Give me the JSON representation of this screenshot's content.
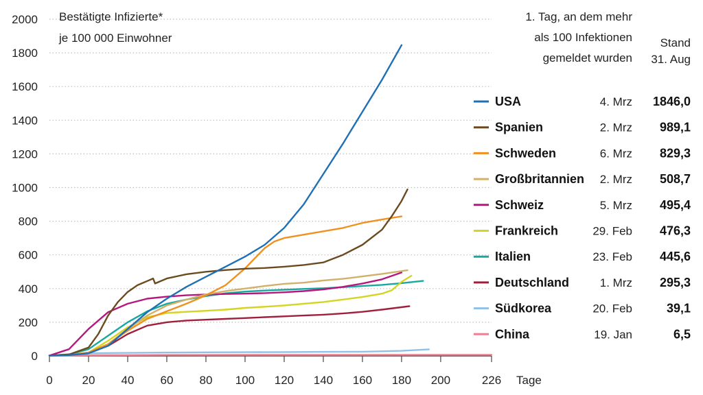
{
  "chart_data": {
    "type": "line",
    "ylabel_lines": [
      "Bestätigte Infizierte*",
      "je 100 000 Einwohner"
    ],
    "xlabel": "Tage",
    "xlim": [
      0,
      226
    ],
    "ylim": [
      0,
      2000
    ],
    "x_ticks": [
      0,
      20,
      40,
      60,
      80,
      100,
      120,
      140,
      160,
      180,
      200,
      226
    ],
    "y_ticks": [
      0,
      200,
      400,
      600,
      800,
      1000,
      1200,
      1400,
      1600,
      1800,
      2000
    ],
    "grid": "horizontal-dotted",
    "legend_header": {
      "date_lines": [
        "1. Tag, an dem mehr",
        "als 100 Infektionen",
        "gemeldet wurden"
      ],
      "value_lines": [
        "Stand",
        "31. Aug"
      ]
    },
    "series": [
      {
        "name": "USA",
        "color": "#1f6fb5",
        "date": "4. Mrz",
        "value": "1846,0",
        "points": [
          [
            0,
            2
          ],
          [
            10,
            5
          ],
          [
            20,
            15
          ],
          [
            30,
            60
          ],
          [
            40,
            160
          ],
          [
            50,
            260
          ],
          [
            60,
            340
          ],
          [
            70,
            410
          ],
          [
            80,
            470
          ],
          [
            90,
            530
          ],
          [
            100,
            590
          ],
          [
            110,
            660
          ],
          [
            120,
            760
          ],
          [
            130,
            900
          ],
          [
            140,
            1080
          ],
          [
            150,
            1260
          ],
          [
            160,
            1450
          ],
          [
            170,
            1640
          ],
          [
            180,
            1846
          ]
        ]
      },
      {
        "name": "Spanien",
        "color": "#6b4a1f",
        "date": "2. Mrz",
        "value": "989,1",
        "points": [
          [
            0,
            2
          ],
          [
            10,
            8
          ],
          [
            20,
            50
          ],
          [
            25,
            130
          ],
          [
            30,
            240
          ],
          [
            35,
            320
          ],
          [
            40,
            380
          ],
          [
            45,
            420
          ],
          [
            50,
            445
          ],
          [
            53,
            460
          ],
          [
            54,
            430
          ],
          [
            60,
            460
          ],
          [
            70,
            485
          ],
          [
            80,
            500
          ],
          [
            90,
            510
          ],
          [
            100,
            518
          ],
          [
            110,
            522
          ],
          [
            120,
            530
          ],
          [
            130,
            540
          ],
          [
            140,
            555
          ],
          [
            150,
            600
          ],
          [
            160,
            660
          ],
          [
            170,
            750
          ],
          [
            175,
            830
          ],
          [
            180,
            920
          ],
          [
            183,
            989
          ]
        ]
      },
      {
        "name": "Schweden",
        "color": "#f0901e",
        "date": "6. Mrz",
        "value": "829,3",
        "points": [
          [
            0,
            2
          ],
          [
            10,
            5
          ],
          [
            20,
            20
          ],
          [
            30,
            70
          ],
          [
            40,
            150
          ],
          [
            50,
            220
          ],
          [
            60,
            265
          ],
          [
            70,
            310
          ],
          [
            80,
            360
          ],
          [
            90,
            420
          ],
          [
            100,
            520
          ],
          [
            105,
            580
          ],
          [
            110,
            640
          ],
          [
            115,
            680
          ],
          [
            120,
            700
          ],
          [
            130,
            720
          ],
          [
            140,
            740
          ],
          [
            150,
            760
          ],
          [
            160,
            790
          ],
          [
            170,
            810
          ],
          [
            180,
            829
          ]
        ]
      },
      {
        "name": "Großbritannien",
        "color": "#d2b06a",
        "date": "2. Mrz",
        "value": "508,7",
        "points": [
          [
            0,
            2
          ],
          [
            10,
            5
          ],
          [
            20,
            20
          ],
          [
            30,
            70
          ],
          [
            40,
            160
          ],
          [
            50,
            240
          ],
          [
            60,
            300
          ],
          [
            70,
            335
          ],
          [
            80,
            365
          ],
          [
            90,
            385
          ],
          [
            100,
            400
          ],
          [
            110,
            415
          ],
          [
            120,
            428
          ],
          [
            130,
            435
          ],
          [
            140,
            448
          ],
          [
            150,
            458
          ],
          [
            160,
            472
          ],
          [
            170,
            487
          ],
          [
            183,
            508.7
          ]
        ]
      },
      {
        "name": "Schweiz",
        "color": "#b5177f",
        "date": "5. Mrz",
        "value": "495,4",
        "points": [
          [
            0,
            2
          ],
          [
            10,
            40
          ],
          [
            20,
            160
          ],
          [
            30,
            260
          ],
          [
            40,
            310
          ],
          [
            50,
            340
          ],
          [
            60,
            352
          ],
          [
            70,
            360
          ],
          [
            80,
            365
          ],
          [
            90,
            368
          ],
          [
            100,
            370
          ],
          [
            110,
            373
          ],
          [
            120,
            378
          ],
          [
            130,
            385
          ],
          [
            140,
            395
          ],
          [
            150,
            410
          ],
          [
            160,
            430
          ],
          [
            170,
            455
          ],
          [
            180,
            495.4
          ]
        ]
      },
      {
        "name": "Frankreich",
        "color": "#d4d421",
        "date": "29. Feb",
        "value": "476,3",
        "points": [
          [
            0,
            2
          ],
          [
            10,
            5
          ],
          [
            20,
            20
          ],
          [
            30,
            90
          ],
          [
            40,
            170
          ],
          [
            50,
            230
          ],
          [
            60,
            255
          ],
          [
            70,
            262
          ],
          [
            80,
            268
          ],
          [
            90,
            275
          ],
          [
            100,
            285
          ],
          [
            110,
            292
          ],
          [
            120,
            300
          ],
          [
            130,
            310
          ],
          [
            140,
            320
          ],
          [
            150,
            335
          ],
          [
            160,
            350
          ],
          [
            170,
            370
          ],
          [
            175,
            390
          ],
          [
            180,
            440
          ],
          [
            185,
            476.3
          ]
        ]
      },
      {
        "name": "Italien",
        "color": "#19a89d",
        "date": "23. Feb",
        "value": "445,6",
        "points": [
          [
            0,
            2
          ],
          [
            10,
            8
          ],
          [
            20,
            40
          ],
          [
            30,
            120
          ],
          [
            40,
            200
          ],
          [
            50,
            265
          ],
          [
            60,
            310
          ],
          [
            70,
            335
          ],
          [
            80,
            355
          ],
          [
            90,
            372
          ],
          [
            100,
            382
          ],
          [
            110,
            388
          ],
          [
            120,
            393
          ],
          [
            130,
            398
          ],
          [
            140,
            402
          ],
          [
            150,
            408
          ],
          [
            160,
            415
          ],
          [
            170,
            422
          ],
          [
            180,
            432
          ],
          [
            191,
            445.6
          ]
        ]
      },
      {
        "name": "Deutschland",
        "color": "#a01f3b",
        "date": "1. Mrz",
        "value": "295,3",
        "points": [
          [
            0,
            2
          ],
          [
            10,
            5
          ],
          [
            20,
            20
          ],
          [
            30,
            60
          ],
          [
            40,
            130
          ],
          [
            50,
            180
          ],
          [
            60,
            200
          ],
          [
            70,
            210
          ],
          [
            80,
            215
          ],
          [
            90,
            220
          ],
          [
            100,
            225
          ],
          [
            110,
            230
          ],
          [
            120,
            235
          ],
          [
            130,
            240
          ],
          [
            140,
            245
          ],
          [
            150,
            252
          ],
          [
            160,
            262
          ],
          [
            170,
            275
          ],
          [
            184,
            295.3
          ]
        ]
      },
      {
        "name": "Südkorea",
        "color": "#8fc1e8",
        "date": "20. Feb",
        "value": "39,1",
        "points": [
          [
            0,
            2
          ],
          [
            10,
            10
          ],
          [
            20,
            16
          ],
          [
            40,
            18
          ],
          [
            60,
            20
          ],
          [
            80,
            21
          ],
          [
            100,
            22
          ],
          [
            120,
            23
          ],
          [
            140,
            24
          ],
          [
            160,
            25
          ],
          [
            180,
            30
          ],
          [
            194,
            39.1
          ]
        ]
      },
      {
        "name": "China",
        "color": "#ef7f8f",
        "date": "19. Jan",
        "value": "6,5",
        "points": [
          [
            0,
            2
          ],
          [
            20,
            4
          ],
          [
            40,
            5
          ],
          [
            60,
            5.5
          ],
          [
            100,
            6
          ],
          [
            150,
            6.3
          ],
          [
            200,
            6.4
          ],
          [
            226,
            6.5
          ]
        ]
      }
    ]
  }
}
